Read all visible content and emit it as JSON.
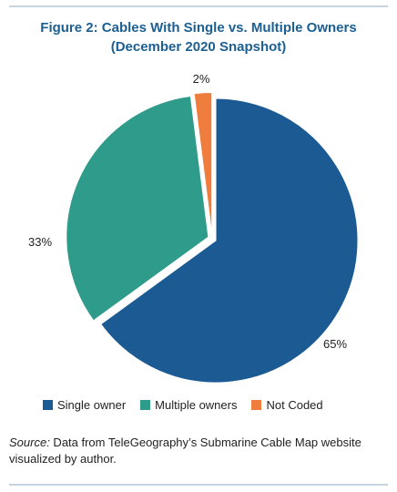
{
  "figure": {
    "title_line1": "Figure 2: Cables With Single vs. Multiple Owners",
    "title_line2": "(December 2020 Snapshot)"
  },
  "chart_data": {
    "type": "pie",
    "title": "Figure 2: Cables With Single vs. Multiple Owners (December 2020 Snapshot)",
    "categories": [
      "Single owner",
      "Multiple owners",
      "Not Coded"
    ],
    "values": [
      65,
      33,
      2
    ],
    "unit": "%",
    "labels": [
      "65%",
      "33%",
      "2%"
    ],
    "colors": [
      "#1c5a93",
      "#2e9b8b",
      "#ef7d3e"
    ],
    "legend_position": "bottom",
    "exploded": true
  },
  "legend": {
    "items": [
      {
        "label": "Single owner",
        "color": "#1c5a93"
      },
      {
        "label": "Multiple owners",
        "color": "#2e9b8b"
      },
      {
        "label": "Not Coded",
        "color": "#ef7d3e"
      }
    ]
  },
  "source": {
    "label": "Source:",
    "text": " Data from TeleGeography’s Submarine Cable Map website visualized by author."
  }
}
